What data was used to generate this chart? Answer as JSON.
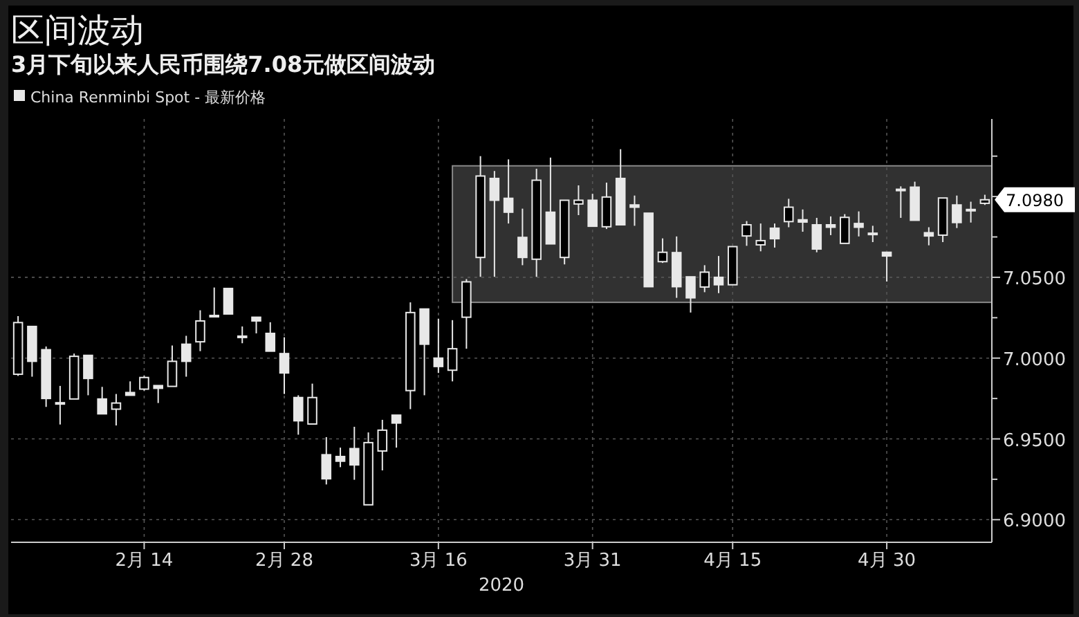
{
  "chart_data": {
    "type": "candlestick",
    "title": "区间波动",
    "subtitle": "3月下旬以来人民币围绕7.08元做区间波动",
    "xlabel": "2020",
    "categories": [
      null,
      null,
      null,
      null,
      null,
      null,
      null,
      null,
      null,
      "2月 14",
      null,
      null,
      null,
      null,
      null,
      null,
      null,
      null,
      null,
      "2月 28",
      null,
      null,
      null,
      null,
      null,
      null,
      null,
      null,
      null,
      null,
      "3月 16",
      null,
      null,
      null,
      null,
      null,
      null,
      null,
      null,
      null,
      null,
      "3月 31",
      null,
      null,
      null,
      null,
      null,
      null,
      null,
      null,
      null,
      "4月 15",
      null,
      null,
      null,
      null,
      null,
      null,
      null,
      null,
      null,
      null,
      "4月 30",
      null,
      null,
      null,
      null,
      null,
      null,
      null
    ],
    "series": [
      {
        "name": "China Renminbi Spot - 最新价格",
        "color": "#e8e8e8",
        "ohlc": [
          [
            6.99,
            7.026,
            6.989,
            7.022
          ],
          [
            7.0196,
            7.0196,
            6.9885,
            6.998
          ],
          [
            7.0052,
            7.0072,
            6.9698,
            6.975
          ],
          [
            6.9724,
            6.9828,
            6.9589,
            6.9722
          ],
          [
            6.9747,
            7.0028,
            6.9747,
            7.0011
          ],
          [
            7.0017,
            7.0017,
            6.977,
            6.9874
          ],
          [
            6.9747,
            6.9822,
            6.9655,
            6.9655
          ],
          [
            6.9684,
            6.9778,
            6.9583,
            6.9722
          ],
          [
            6.9787,
            6.9856,
            6.977,
            6.977
          ],
          [
            6.9808,
            6.989,
            6.9799,
            6.988
          ],
          [
            6.983,
            6.983,
            6.9722,
            6.9813
          ],
          [
            6.9825,
            7.0078,
            6.9825,
            6.998
          ],
          [
            7.0086,
            7.0138,
            6.9885,
            6.998
          ],
          [
            7.0101,
            7.0296,
            7.0043,
            7.023
          ],
          [
            7.0264,
            7.0437,
            7.0259,
            7.0259
          ],
          [
            7.0431,
            7.0431,
            7.0273,
            7.0273
          ],
          [
            7.0128,
            7.0196,
            7.0092,
            7.0136
          ],
          [
            7.0253,
            7.0253,
            7.0153,
            7.023
          ],
          [
            7.0153,
            7.0222,
            7.0043,
            7.0043
          ],
          [
            7.0028,
            7.0129,
            6.9778,
            6.9908
          ],
          [
            6.9756,
            6.977,
            6.9526,
            6.9612
          ],
          [
            6.9592,
            6.9842,
            6.9592,
            6.9756
          ],
          [
            6.9402,
            6.9511,
            6.9218,
            6.9253
          ],
          [
            6.9391,
            6.9446,
            6.9325,
            6.9362
          ],
          [
            6.944,
            6.9575,
            6.9247,
            6.9339
          ],
          [
            6.9092,
            6.954,
            6.9092,
            6.9477
          ],
          [
            6.9425,
            6.9618,
            6.9305,
            6.9554
          ],
          [
            6.9647,
            6.9647,
            6.9446,
            6.9598
          ],
          [
            6.9799,
            7.0345,
            6.9684,
            7.0282
          ],
          [
            7.0304,
            7.0304,
            6.977,
            7.0086
          ],
          [
            7.0,
            7.0244,
            6.9908,
            6.9948
          ],
          [
            6.9925,
            7.0235,
            6.9856,
            7.0058
          ],
          [
            7.0253,
            7.0489,
            7.0058,
            7.0472
          ],
          [
            7.0623,
            7.125,
            7.0503,
            7.1127
          ],
          [
            7.1112,
            7.1158,
            7.0503,
            7.0977
          ],
          [
            7.0989,
            7.123,
            7.0833,
            7.0903
          ],
          [
            7.0747,
            7.0925,
            7.0575,
            7.0623
          ],
          [
            7.0612,
            7.1172,
            7.0503,
            7.1101
          ],
          [
            7.0903,
            7.1241,
            7.0707,
            7.0707
          ],
          [
            7.0623,
            7.0977,
            7.058,
            7.0977
          ],
          [
            7.0954,
            7.1069,
            7.0885,
            7.0977
          ],
          [
            7.0977,
            7.1017,
            7.0816,
            7.0816
          ],
          [
            7.0813,
            7.1086,
            7.0799,
            7.0997
          ],
          [
            7.1112,
            7.1293,
            7.0825,
            7.0825
          ],
          [
            7.0948,
            7.1006,
            7.0819,
            7.0934
          ],
          [
            7.0897,
            7.0897,
            7.0442,
            7.0442
          ],
          [
            7.0597,
            7.0741,
            7.0589,
            7.0655
          ],
          [
            7.0653,
            7.0753,
            7.0373,
            7.0442
          ],
          [
            7.0503,
            7.0503,
            7.0282,
            7.0373
          ],
          [
            7.044,
            7.0575,
            7.0408,
            7.0532
          ],
          [
            7.05,
            7.0632,
            7.0402,
            7.0454
          ],
          [
            7.0454,
            7.069,
            7.0454,
            7.069
          ],
          [
            7.0756,
            7.0848,
            7.0695,
            7.0825
          ],
          [
            7.0701,
            7.0833,
            7.0661,
            7.0727
          ],
          [
            7.0804,
            7.0833,
            7.0684,
            7.0739
          ],
          [
            7.0845,
            7.0986,
            7.081,
            7.0934
          ],
          [
            7.0856,
            7.092,
            7.0782,
            7.0842
          ],
          [
            7.0825,
            7.0868,
            7.0655,
            7.0675
          ],
          [
            7.0825,
            7.0877,
            7.0761,
            7.081
          ],
          [
            7.071,
            7.0891,
            7.071,
            7.0871
          ],
          [
            7.0833,
            7.0908,
            7.0753,
            7.081
          ],
          [
            7.0773,
            7.0819,
            7.0718,
            7.077
          ],
          [
            7.0655,
            7.0655,
            7.0474,
            7.0632
          ],
          [
            7.1045,
            7.1063,
            7.0868,
            7.1043
          ],
          [
            7.1058,
            7.1092,
            7.0853,
            7.0853
          ],
          [
            7.0776,
            7.081,
            7.0698,
            7.0756
          ],
          [
            7.0761,
            7.0991,
            7.0718,
            7.0991
          ],
          [
            7.0948,
            7.1006,
            7.0805,
            7.0839
          ],
          [
            7.092,
            7.0968,
            7.0839,
            7.0917
          ],
          [
            7.0958,
            7.1011,
            7.0948,
            7.098
          ]
        ]
      }
    ],
    "ylim": [
      6.886,
      7.148
    ],
    "yticks": [
      {
        "value": 6.9,
        "label": "6.9000"
      },
      {
        "value": 6.925,
        "label": null
      },
      {
        "value": 6.95,
        "label": "6.9500"
      },
      {
        "value": 6.975,
        "label": null
      },
      {
        "value": 7.0,
        "label": "7.0000"
      },
      {
        "value": 7.025,
        "label": null
      },
      {
        "value": 7.05,
        "label": "7.0500"
      },
      {
        "value": 7.075,
        "label": null
      },
      {
        "value": 7.1,
        "label": null
      },
      {
        "value": 7.125,
        "label": null
      }
    ],
    "bands": [
      {
        "axis": "y",
        "from": 7.0345,
        "to": 7.119,
        "color": "#3a3a3a"
      }
    ],
    "annotations": [
      "7.0980"
    ],
    "grid": true,
    "legend": "top left"
  }
}
